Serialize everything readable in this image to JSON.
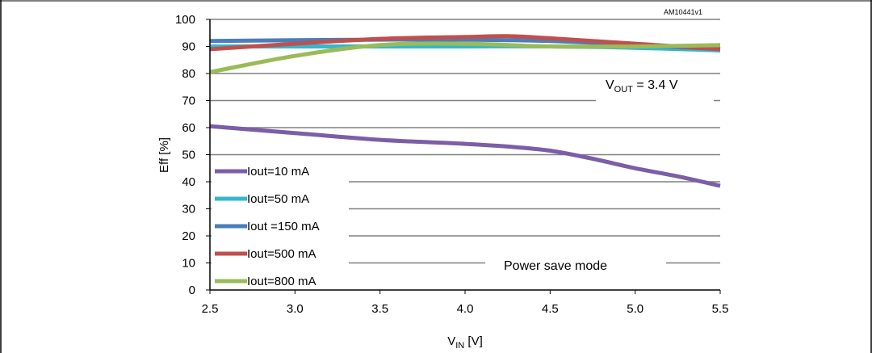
{
  "chart_data": {
    "type": "line",
    "title": "",
    "xlabel": "V",
    "xlabel_sub": "IN",
    "xlabel_unit": " [V]",
    "ylabel": "Eff  [%]",
    "xlim": [
      2.5,
      5.5
    ],
    "ylim": [
      0,
      100
    ],
    "x_ticks": [
      "2.5",
      "3.0",
      "3.5",
      "4.0",
      "4.5",
      "5.0",
      "5.5"
    ],
    "y_ticks": [
      "0",
      "10",
      "20",
      "30",
      "40",
      "50",
      "60",
      "70",
      "80",
      "90",
      "100"
    ],
    "grid": "horizontal",
    "legend_position": "bottom-left",
    "figure_code": "AM10441v1",
    "annotation_vout": {
      "main": "V",
      "sub": "OUT",
      "rest": " = 3.4 V"
    },
    "annotation_mode": "Power save mode",
    "series": [
      {
        "name": "Iout=10 mA",
        "color": "#7b5ea7",
        "points": [
          [
            2.5,
            60.5
          ],
          [
            3.0,
            58
          ],
          [
            3.5,
            55.5
          ],
          [
            4.0,
            54
          ],
          [
            4.25,
            53
          ],
          [
            4.5,
            51.5
          ],
          [
            4.75,
            48.5
          ],
          [
            5.0,
            45
          ],
          [
            5.25,
            42
          ],
          [
            5.5,
            38.5
          ]
        ]
      },
      {
        "name": "Iout=50 mA",
        "color": "#33b8cc",
        "points": [
          [
            2.5,
            90
          ],
          [
            3.0,
            90
          ],
          [
            3.5,
            90
          ],
          [
            4.0,
            90
          ],
          [
            4.5,
            90
          ],
          [
            5.0,
            89.5
          ],
          [
            5.5,
            88.5
          ]
        ]
      },
      {
        "name": "Iout =150 mA",
        "color": "#4a7ebb",
        "points": [
          [
            2.5,
            92
          ],
          [
            3.0,
            92.3
          ],
          [
            3.5,
            92.5
          ],
          [
            4.0,
            92.5
          ],
          [
            4.5,
            92
          ],
          [
            5.0,
            90.5
          ],
          [
            5.5,
            89
          ]
        ]
      },
      {
        "name": "Iout=500 mA",
        "color": "#c0504d",
        "points": [
          [
            2.5,
            89
          ],
          [
            3.0,
            91
          ],
          [
            3.5,
            92.8
          ],
          [
            4.0,
            93.5
          ],
          [
            4.25,
            93.8
          ],
          [
            4.5,
            93
          ],
          [
            5.0,
            91
          ],
          [
            5.5,
            89
          ]
        ]
      },
      {
        "name": "Iout=800 mA",
        "color": "#9bbb59",
        "points": [
          [
            2.5,
            80.5
          ],
          [
            3.0,
            86.5
          ],
          [
            3.5,
            90.5
          ],
          [
            4.0,
            91
          ],
          [
            4.5,
            90
          ],
          [
            5.0,
            90
          ],
          [
            5.5,
            90.5
          ]
        ]
      }
    ]
  }
}
